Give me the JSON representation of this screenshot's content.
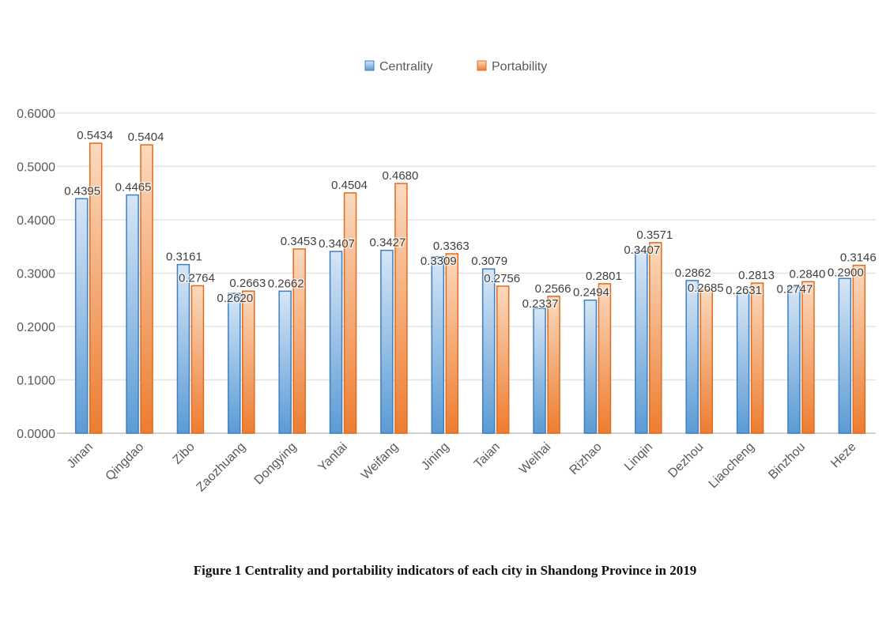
{
  "chart_data": {
    "type": "bar",
    "title": "",
    "caption": "Figure 1  Centrality and portability indicators of each city in Shandong Province in 2019",
    "categories": [
      "Jinan",
      "Qingdao",
      "Zibo",
      "Zaozhuang",
      "Dongying",
      "Yantai",
      "Weifang",
      "Jining",
      "Taian",
      "Weihai",
      "Rizhao",
      "Linqin",
      "Dezhou",
      "Liaocheng",
      "Binzhou",
      "Heze"
    ],
    "series": [
      {
        "name": "Centrality",
        "color": "#5b9bd5",
        "values": [
          0.4395,
          0.4465,
          0.3161,
          0.262,
          0.2662,
          0.3407,
          0.3427,
          0.3309,
          0.3079,
          0.2337,
          0.2494,
          0.3407,
          0.2862,
          0.2631,
          0.2747,
          0.29
        ]
      },
      {
        "name": "Portability",
        "color": "#ed7d31",
        "values": [
          0.5434,
          0.5404,
          0.2764,
          0.2663,
          0.3453,
          0.4504,
          0.468,
          0.3363,
          0.2756,
          0.2566,
          0.2801,
          0.3571,
          0.2685,
          0.2813,
          0.284,
          0.3146
        ]
      }
    ],
    "ylim": [
      0,
      0.6
    ],
    "yticks": [
      "0.0000",
      "0.1000",
      "0.2000",
      "0.3000",
      "0.4000",
      "0.5000",
      "0.6000"
    ],
    "grid": true,
    "legend": "top",
    "xlabel": "",
    "ylabel": ""
  }
}
